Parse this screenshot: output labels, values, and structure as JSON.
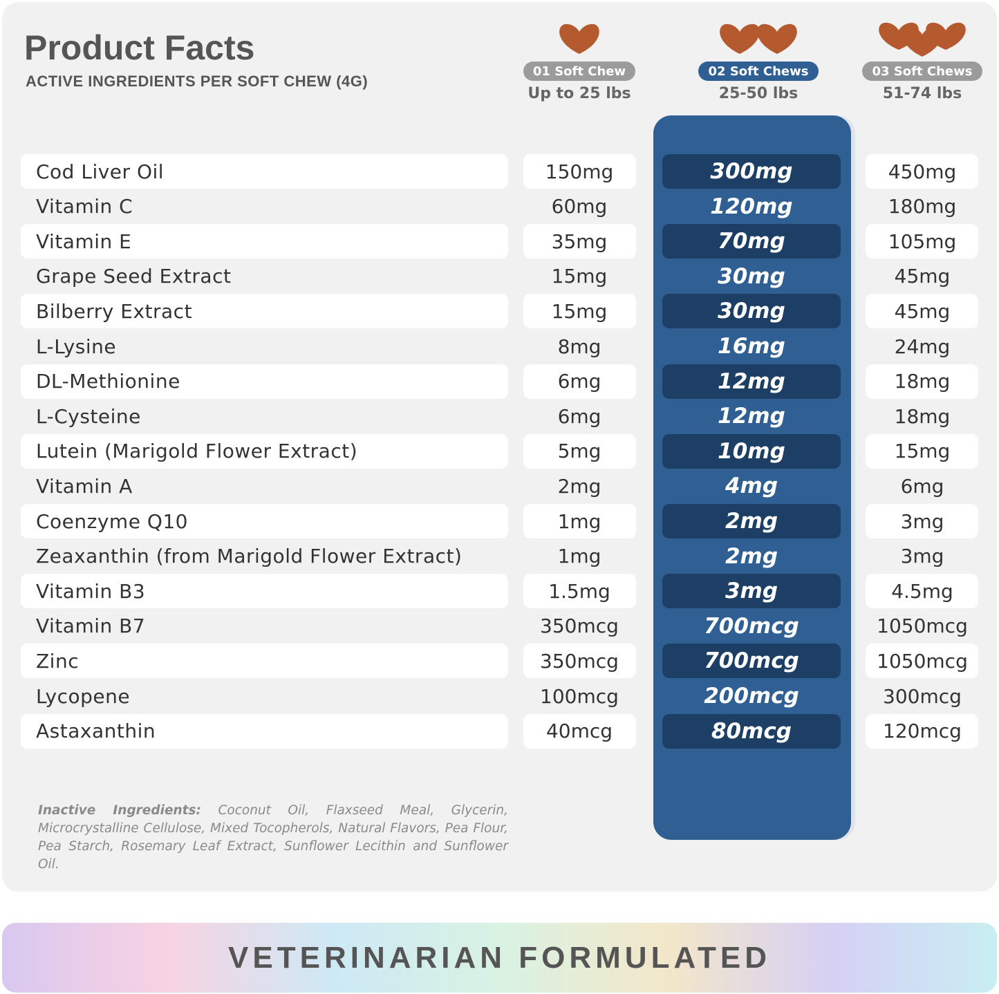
{
  "header": {
    "title": "Product Facts",
    "subtitle": "ACTIVE INGREDIENTS PER SOFT CHEW (4G)"
  },
  "columns": [
    {
      "badge": "01 Soft Chew",
      "weight": "Up to 25 lbs"
    },
    {
      "badge": "02 Soft Chews",
      "weight": "25-50 lbs"
    },
    {
      "badge": "03 Soft Chews",
      "weight": "51-74 lbs"
    }
  ],
  "table": {
    "rows": [
      [
        "Cod Liver Oil",
        "150mg",
        "300mg",
        "450mg"
      ],
      [
        "Vitamin C",
        "60mg",
        "120mg",
        "180mg"
      ],
      [
        "Vitamin E",
        "35mg",
        "70mg",
        "105mg"
      ],
      [
        "Grape Seed Extract",
        "15mg",
        "30mg",
        "45mg"
      ],
      [
        "Bilberry Extract",
        "15mg",
        "30mg",
        "45mg"
      ],
      [
        "L-Lysine",
        "8mg",
        "16mg",
        "24mg"
      ],
      [
        "DL-Methionine",
        "6mg",
        "12mg",
        "18mg"
      ],
      [
        "L-Cysteine",
        "6mg",
        "12mg",
        "18mg"
      ],
      [
        "Lutein (Marigold Flower Extract)",
        "5mg",
        "10mg",
        "15mg"
      ],
      [
        "Vitamin A",
        "2mg",
        "4mg",
        "6mg"
      ],
      [
        "Coenzyme Q10",
        "1mg",
        "2mg",
        "3mg"
      ],
      [
        "Zeaxanthin (from Marigold Flower Extract)",
        "1mg",
        "2mg",
        "3mg"
      ],
      [
        "Vitamin B3",
        "1.5mg",
        "3mg",
        "4.5mg"
      ],
      [
        "Vitamin B7",
        "350mcg",
        "700mcg",
        "1050mcg"
      ],
      [
        "Zinc",
        "350mcg",
        "700mcg",
        "1050mcg"
      ],
      [
        "Lycopene",
        "100mcg",
        "200mcg",
        "300mcg"
      ],
      [
        "Astaxanthin",
        "40mcg",
        "80mcg",
        "120mcg"
      ]
    ]
  },
  "inactive": {
    "label": "Inactive Ingredients:",
    "text": "Coconut Oil, Flaxseed Meal, Glycerin, Microcrystalline Cellulose, Mixed Tocopherols, Natural Flavors, Pea Flour, Pea Starch, Rosemary Leaf Extract, Sunflower Lecithin and Sunflower Oil."
  },
  "footer": {
    "banner": "VETERINARIAN FORMULATED"
  }
}
